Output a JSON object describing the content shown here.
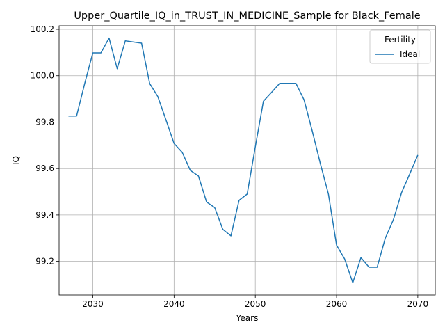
{
  "chart_data": {
    "type": "line",
    "title": "Upper_Quartile_IQ_in_TRUST_IN_MEDICINE_Sample for Black_Female",
    "xlabel": "Years",
    "ylabel": "IQ",
    "xlim": [
      2025.85,
      2072.15
    ],
    "ylim": [
      99.055,
      100.215
    ],
    "xticks": [
      2030,
      2040,
      2050,
      2060,
      2070
    ],
    "yticks": [
      99.2,
      99.4,
      99.6,
      99.8,
      100.0,
      100.2
    ],
    "ytick_labels": [
      "99.2",
      "99.4",
      "99.6",
      "99.8",
      "100.0",
      "100.2"
    ],
    "grid": true,
    "legend": {
      "title": "Fertility",
      "placement": "top-right"
    },
    "series": [
      {
        "name": "Ideal",
        "color": "#1f77b4",
        "x": [
          2027,
          2028,
          2029,
          2030,
          2031,
          2032,
          2033,
          2034,
          2035,
          2036,
          2037,
          2038,
          2039,
          2040,
          2041,
          2042,
          2043,
          2044,
          2045,
          2046,
          2047,
          2048,
          2049,
          2050,
          2051,
          2052,
          2053,
          2054,
          2055,
          2056,
          2057,
          2058,
          2059,
          2060,
          2061,
          2062,
          2063,
          2064,
          2065,
          2066,
          2067,
          2068,
          2069,
          2070
        ],
        "values": [
          99.826,
          99.826,
          99.966,
          100.098,
          100.098,
          100.162,
          100.03,
          100.15,
          100.145,
          100.14,
          99.966,
          99.91,
          99.81,
          99.708,
          99.67,
          99.592,
          99.568,
          99.456,
          99.432,
          99.338,
          99.31,
          99.463,
          99.49,
          99.693,
          99.89,
          99.928,
          99.967,
          99.967,
          99.967,
          99.896,
          99.763,
          99.622,
          99.49,
          99.27,
          99.21,
          99.108,
          99.216,
          99.175,
          99.175,
          99.3,
          99.38,
          99.496,
          99.576,
          99.658
        ]
      }
    ]
  }
}
